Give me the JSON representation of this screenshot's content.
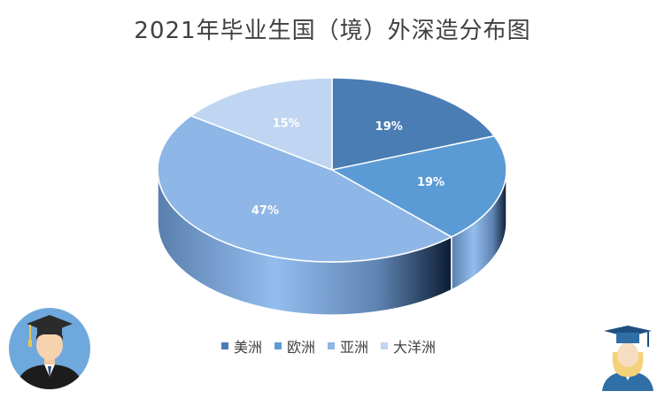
{
  "title": "2021年毕业生国（境）外深造分布图",
  "chart_data": {
    "type": "pie",
    "style": "3d",
    "categories": [
      "美洲",
      "欧洲",
      "亚洲",
      "大洋洲"
    ],
    "values": [
      19,
      19,
      47,
      15
    ],
    "labels": [
      "19%",
      "19%",
      "47%",
      "15%"
    ],
    "colors": [
      "#4A7DB4",
      "#5B9BD5",
      "#8EB6E6",
      "#BFD5F2"
    ],
    "legend_position": "bottom"
  },
  "icons": {
    "left": "graduate-man-avatar-icon",
    "right": "graduate-woman-avatar-icon"
  }
}
